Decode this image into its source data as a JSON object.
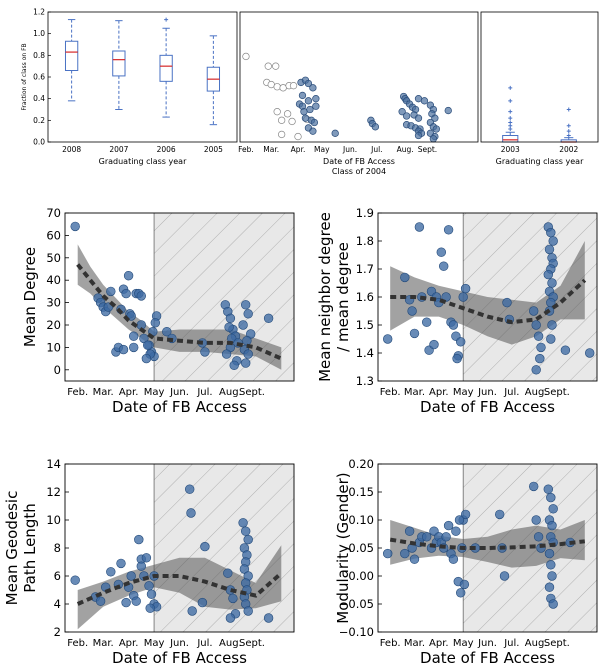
{
  "chart_data": [
    {
      "id": "top-left",
      "type": "box",
      "ylabel": "Fraction of class on FB",
      "xlabel": "Graduating class year",
      "categories": [
        "2008",
        "2007",
        "2006",
        "2005"
      ],
      "ylim": [
        0.0,
        1.2
      ],
      "yticks": [
        "0.0",
        "0.2",
        "0.4",
        "0.6",
        "0.8",
        "1.0",
        "1.2"
      ],
      "boxes": [
        {
          "min": 0.38,
          "q1": 0.66,
          "median": 0.83,
          "q3": 0.93,
          "max": 1.13,
          "fliers": []
        },
        {
          "min": 0.3,
          "q1": 0.61,
          "median": 0.76,
          "q3": 0.84,
          "max": 1.12,
          "fliers": []
        },
        {
          "min": 0.23,
          "q1": 0.56,
          "median": 0.7,
          "q3": 0.8,
          "max": 1.05,
          "fliers": [
            1.13
          ]
        },
        {
          "min": 0.16,
          "q1": 0.47,
          "median": 0.58,
          "q3": 0.69,
          "max": 0.98,
          "fliers": []
        }
      ],
      "colors": {
        "box": "#4a72c4",
        "median": "#d62728"
      }
    },
    {
      "id": "top-middle",
      "type": "scatter",
      "xlabel": "Date of FB Access",
      "subtitle": "Class of 2004",
      "xticks": [
        "Feb.",
        "Mar.",
        "Apr.",
        "May",
        "Jun.",
        "Jul.",
        "Aug.",
        "Sept."
      ],
      "xrange": [
        1,
        9
      ],
      "yrange": [
        0.0,
        1.2
      ],
      "series": [
        {
          "style": "open",
          "x": [
            1.2,
            1.95,
            2.2,
            1.9,
            2.05,
            2.25,
            2.45,
            2.65,
            2.8,
            2.25,
            2.6,
            2.4,
            2.75,
            2.4,
            2.95,
            3.25
          ],
          "y": [
            0.79,
            0.7,
            0.7,
            0.55,
            0.53,
            0.51,
            0.5,
            0.52,
            0.52,
            0.28,
            0.26,
            0.2,
            0.19,
            0.07,
            0.05,
            0.21
          ]
        },
        {
          "style": "filled",
          "x": [
            3.05,
            3.2,
            3.3,
            3.45,
            3.1,
            3.3,
            3.55,
            3.0,
            3.1,
            3.15,
            3.35,
            3.55,
            3.2,
            3.4,
            3.5,
            3.3,
            3.45,
            4.2,
            5.4,
            5.45,
            5.55,
            6.5,
            6.55,
            6.6,
            6.7,
            6.8,
            6.9,
            7.0,
            6.45,
            6.6,
            6.85,
            7.0,
            6.6,
            6.75,
            6.9,
            7.05,
            7.0,
            7.1,
            7.0,
            7.2,
            7.4,
            7.5,
            7.45,
            7.55,
            7.4,
            7.5,
            7.6,
            7.4,
            7.55,
            7.5,
            8.0
          ],
          "y": [
            0.55,
            0.57,
            0.54,
            0.5,
            0.43,
            0.38,
            0.4,
            0.35,
            0.33,
            0.28,
            0.3,
            0.33,
            0.22,
            0.2,
            0.18,
            0.13,
            0.1,
            0.08,
            0.2,
            0.17,
            0.14,
            0.42,
            0.4,
            0.38,
            0.35,
            0.32,
            0.3,
            0.4,
            0.28,
            0.24,
            0.25,
            0.22,
            0.16,
            0.15,
            0.13,
            0.12,
            0.1,
            0.08,
            0.06,
            0.38,
            0.34,
            0.3,
            0.26,
            0.22,
            0.18,
            0.14,
            0.12,
            0.08,
            0.05,
            0.03,
            0.29
          ]
        }
      ],
      "colors": {
        "filled": "#4a6f9e",
        "open": "#cccccc"
      }
    },
    {
      "id": "top-right",
      "type": "box",
      "xlabel": "Graduating class year",
      "categories": [
        "2003",
        "2002"
      ],
      "ylim": [
        0.0,
        1.2
      ],
      "boxes": [
        {
          "min": 0.0,
          "q1": 0.0,
          "median": 0.02,
          "q3": 0.06,
          "max": 0.09,
          "fliers": [
            0.12,
            0.15,
            0.18,
            0.22,
            0.28,
            0.38,
            0.5
          ]
        },
        {
          "min": 0.0,
          "q1": 0.0,
          "median": 0.0,
          "q3": 0.02,
          "max": 0.04,
          "fliers": [
            0.06,
            0.1,
            0.15,
            0.3
          ]
        }
      ]
    },
    {
      "id": "mean-degree",
      "type": "scatter",
      "xlabel": "Date of FB Access",
      "ylabel": "Mean Degree",
      "xticks": [
        "Feb.",
        "Mar.",
        "Apr.",
        "May",
        "Jun.",
        "Jul.",
        "Aug.",
        "Sept."
      ],
      "xrange": [
        0.5,
        9.5
      ],
      "ylim": [
        -5,
        70
      ],
      "yticks": [
        "0",
        "10",
        "20",
        "30",
        "40",
        "50",
        "60",
        "70"
      ],
      "shaded_from_x": 4,
      "points": {
        "x": [
          0.9,
          1.8,
          1.9,
          2.0,
          2.1,
          2.2,
          2.3,
          2.5,
          2.7,
          2.8,
          2.9,
          3.0,
          3.05,
          3.1,
          3.2,
          3.3,
          3.4,
          3.5,
          2.6,
          2.8,
          3.2,
          3.5,
          3.6,
          3.8,
          3.9,
          4.0,
          4.1,
          4.05,
          3.95,
          3.85,
          3.7,
          3.75,
          4.5,
          4.7,
          5.9,
          6.0,
          6.8,
          6.9,
          7.0,
          7.1,
          7.2,
          7.0,
          6.85,
          7.25,
          7.15,
          7.6,
          7.7,
          7.5,
          7.8,
          7.65,
          7.55,
          7.7,
          7.6,
          8.5,
          6.95,
          7.05,
          7.3
        ],
        "y": [
          64,
          32,
          30,
          28,
          26,
          28,
          35,
          8,
          27,
          36,
          34,
          42,
          25,
          24,
          10,
          34,
          34,
          33,
          10,
          9,
          15,
          20,
          14,
          11,
          8,
          6,
          24,
          21,
          17,
          7,
          5,
          11,
          17,
          14,
          12,
          8,
          29,
          26,
          23,
          18,
          15,
          10,
          7,
          4,
          2,
          29,
          25,
          20,
          16,
          13,
          9,
          7,
          3,
          23,
          19,
          14,
          12
        ]
      },
      "trend": {
        "x": [
          1,
          1.5,
          2,
          2.5,
          3,
          3.5,
          4,
          5,
          6,
          7,
          8,
          9
        ],
        "y": [
          47,
          40,
          33,
          28,
          22,
          18,
          14,
          13,
          12,
          12,
          10,
          5
        ]
      },
      "band": {
        "x": [
          1,
          1.5,
          2,
          2.5,
          3,
          3.5,
          4,
          5,
          6,
          7,
          8,
          9
        ],
        "upper": [
          56,
          46,
          38,
          32,
          26,
          22,
          17,
          18,
          18,
          18,
          14,
          10
        ],
        "lower": [
          38,
          34,
          28,
          23,
          18,
          14,
          10,
          8,
          8,
          7,
          6,
          0
        ]
      }
    },
    {
      "id": "mean-neighbor-degree",
      "type": "scatter",
      "xlabel": "Date of FB Access",
      "ylabel_line1": "Mean neighbor degree",
      "ylabel_line2": "/ mean degree",
      "xticks": [
        "Feb.",
        "Mar.",
        "Apr.",
        "May",
        "Jun.",
        "Jul.",
        "Aug.",
        "Sept."
      ],
      "xrange": [
        0.5,
        9.5
      ],
      "ylim": [
        1.3,
        1.9
      ],
      "yticks": [
        "1.3",
        "1.4",
        "1.5",
        "1.6",
        "1.7",
        "1.8",
        "1.9"
      ],
      "shaded_from_x": 4,
      "points": {
        "x": [
          0.9,
          1.6,
          1.8,
          1.9,
          2.0,
          2.2,
          2.3,
          2.5,
          2.7,
          2.9,
          3.0,
          3.1,
          3.2,
          3.3,
          3.4,
          3.5,
          2.6,
          2.8,
          3.6,
          3.7,
          3.8,
          4.0,
          4.1,
          3.9,
          3.75,
          5.8,
          5.9,
          6.9,
          7.0,
          7.1,
          7.2,
          7.0,
          7.15,
          7.5,
          7.6,
          7.7,
          7.55,
          7.65,
          7.7,
          7.6,
          7.5,
          7.65,
          7.55,
          7.7,
          7.6,
          7.55,
          7.65,
          7.6,
          8.2,
          9.2
        ],
        "y": [
          1.45,
          1.67,
          1.59,
          1.55,
          1.47,
          1.85,
          1.6,
          1.51,
          1.62,
          1.6,
          1.58,
          1.76,
          1.71,
          1.6,
          1.84,
          1.51,
          1.41,
          1.43,
          1.5,
          1.46,
          1.39,
          1.6,
          1.63,
          1.44,
          1.38,
          1.58,
          1.52,
          1.55,
          1.5,
          1.46,
          1.42,
          1.34,
          1.38,
          1.85,
          1.83,
          1.8,
          1.77,
          1.74,
          1.72,
          1.7,
          1.68,
          1.65,
          1.62,
          1.6,
          1.58,
          1.55,
          1.5,
          1.45,
          1.41,
          1.4
        ]
      },
      "trend": {
        "x": [
          1,
          2,
          3,
          4,
          5,
          6,
          7,
          8,
          9
        ],
        "y": [
          1.6,
          1.6,
          1.59,
          1.56,
          1.53,
          1.51,
          1.52,
          1.58,
          1.66
        ]
      },
      "band": {
        "x": [
          1,
          2,
          3,
          4,
          5,
          6,
          7,
          8,
          9
        ],
        "upper": [
          1.71,
          1.67,
          1.64,
          1.62,
          1.6,
          1.59,
          1.58,
          1.64,
          1.8
        ],
        "lower": [
          1.48,
          1.53,
          1.53,
          1.5,
          1.46,
          1.43,
          1.46,
          1.52,
          1.52
        ]
      }
    },
    {
      "id": "geodesic-path",
      "type": "scatter",
      "xlabel": "Date of FB Access",
      "ylabel_line1": "Mean Geodesic",
      "ylabel_line2": "Path Length",
      "xticks": [
        "Feb.",
        "Mar.",
        "Apr.",
        "May",
        "Jun.",
        "Jul.",
        "Aug.",
        "Sept."
      ],
      "xrange": [
        0.5,
        9.5
      ],
      "ylim": [
        2,
        14
      ],
      "yticks": [
        "2",
        "4",
        "6",
        "8",
        "10",
        "12",
        "14"
      ],
      "shaded_from_x": 4,
      "points": {
        "x": [
          0.9,
          1.7,
          1.9,
          2.1,
          2.3,
          2.6,
          2.7,
          2.9,
          3.0,
          3.1,
          3.2,
          3.3,
          3.4,
          3.5,
          3.6,
          3.5,
          3.7,
          3.8,
          3.9,
          4.0,
          4.1,
          3.85,
          4.0,
          5.4,
          5.45,
          5.5,
          5.9,
          6.0,
          6.9,
          7.0,
          7.1,
          7.2,
          7.0,
          7.5,
          7.6,
          7.7,
          7.55,
          7.65,
          7.6,
          7.55,
          7.7,
          7.6,
          7.65,
          7.55,
          7.6,
          7.7,
          8.5
        ],
        "y": [
          5.7,
          4.5,
          4.2,
          5.2,
          6.3,
          5.4,
          6.9,
          4.1,
          5.2,
          6.0,
          4.6,
          4.2,
          8.6,
          7.2,
          6.0,
          6.7,
          7.3,
          5.3,
          4.7,
          4.0,
          3.8,
          3.7,
          6.0,
          12.2,
          10.5,
          3.5,
          4.1,
          8.1,
          6.2,
          5.0,
          4.4,
          3.3,
          3.0,
          9.8,
          9.2,
          8.6,
          8.0,
          7.5,
          7.0,
          6.5,
          6.0,
          5.5,
          5.0,
          4.5,
          4.0,
          3.5,
          3.0
        ]
      },
      "trend": {
        "x": [
          1,
          2,
          3,
          4,
          5,
          6,
          7,
          8,
          9
        ],
        "y": [
          4.0,
          4.8,
          5.5,
          6.0,
          6.0,
          5.6,
          5.0,
          4.6,
          6.2
        ]
      },
      "band": {
        "x": [
          1,
          2,
          3,
          4,
          5,
          6,
          7,
          8,
          9
        ],
        "upper": [
          5.0,
          5.6,
          6.3,
          6.8,
          7.3,
          7.3,
          6.4,
          5.5,
          8.2
        ],
        "lower": [
          2.2,
          3.8,
          4.6,
          5.2,
          4.8,
          3.8,
          3.6,
          3.7,
          4.2
        ]
      }
    },
    {
      "id": "modularity-gender",
      "type": "scatter",
      "xlabel": "Date of FB Access",
      "ylabel": "Modularity (Gender)",
      "xticks": [
        "Feb.",
        "Mar.",
        "Apr.",
        "May",
        "Jun.",
        "Jul.",
        "Aug.",
        "Sept."
      ],
      "xrange": [
        0.5,
        9.5
      ],
      "ylim": [
        -0.1,
        0.2
      ],
      "yticks": [
        "−0.10",
        "−0.05",
        "0.00",
        "0.05",
        "0.10",
        "0.15",
        "0.20"
      ],
      "shaded_from_x": 4,
      "points": {
        "x": [
          0.9,
          1.6,
          1.8,
          1.9,
          2.0,
          2.2,
          2.3,
          2.5,
          2.7,
          2.8,
          2.9,
          3.0,
          3.1,
          3.2,
          3.3,
          3.4,
          3.5,
          3.6,
          3.7,
          3.8,
          3.9,
          4.0,
          4.1,
          3.85,
          3.95,
          4.05,
          4.5,
          5.5,
          5.6,
          5.7,
          6.9,
          7.0,
          7.1,
          7.2,
          7.5,
          7.6,
          7.7,
          7.55,
          7.65,
          7.6,
          7.7,
          7.55,
          7.6,
          7.65,
          7.55,
          7.6,
          7.7,
          8.4
        ],
        "y": [
          0.04,
          0.04,
          0.08,
          0.05,
          0.03,
          0.06,
          0.07,
          0.07,
          0.05,
          0.08,
          0.06,
          0.07,
          0.06,
          0.05,
          0.07,
          0.09,
          0.04,
          0.03,
          0.08,
          -0.01,
          -0.03,
          0.1,
          0.11,
          0.1,
          0.05,
          -0.015,
          0.05,
          0.11,
          0.05,
          0.0,
          0.16,
          0.1,
          0.07,
          0.05,
          0.155,
          0.14,
          0.12,
          0.1,
          0.09,
          0.07,
          0.06,
          0.04,
          0.02,
          0.0,
          -0.02,
          -0.04,
          -0.05,
          0.06
        ]
      },
      "trend": {
        "x": [
          1,
          2,
          3,
          4,
          5,
          6,
          7,
          8,
          9
        ],
        "y": [
          0.065,
          0.058,
          0.053,
          0.05,
          0.05,
          0.051,
          0.053,
          0.057,
          0.062
        ]
      },
      "band": {
        "x": [
          1,
          2,
          3,
          4,
          5,
          6,
          7,
          8,
          9
        ],
        "upper": [
          0.1,
          0.086,
          0.072,
          0.066,
          0.07,
          0.083,
          0.09,
          0.083,
          0.1
        ],
        "lower": [
          0.02,
          0.031,
          0.036,
          0.034,
          0.025,
          0.015,
          0.018,
          0.032,
          0.028
        ]
      }
    }
  ]
}
